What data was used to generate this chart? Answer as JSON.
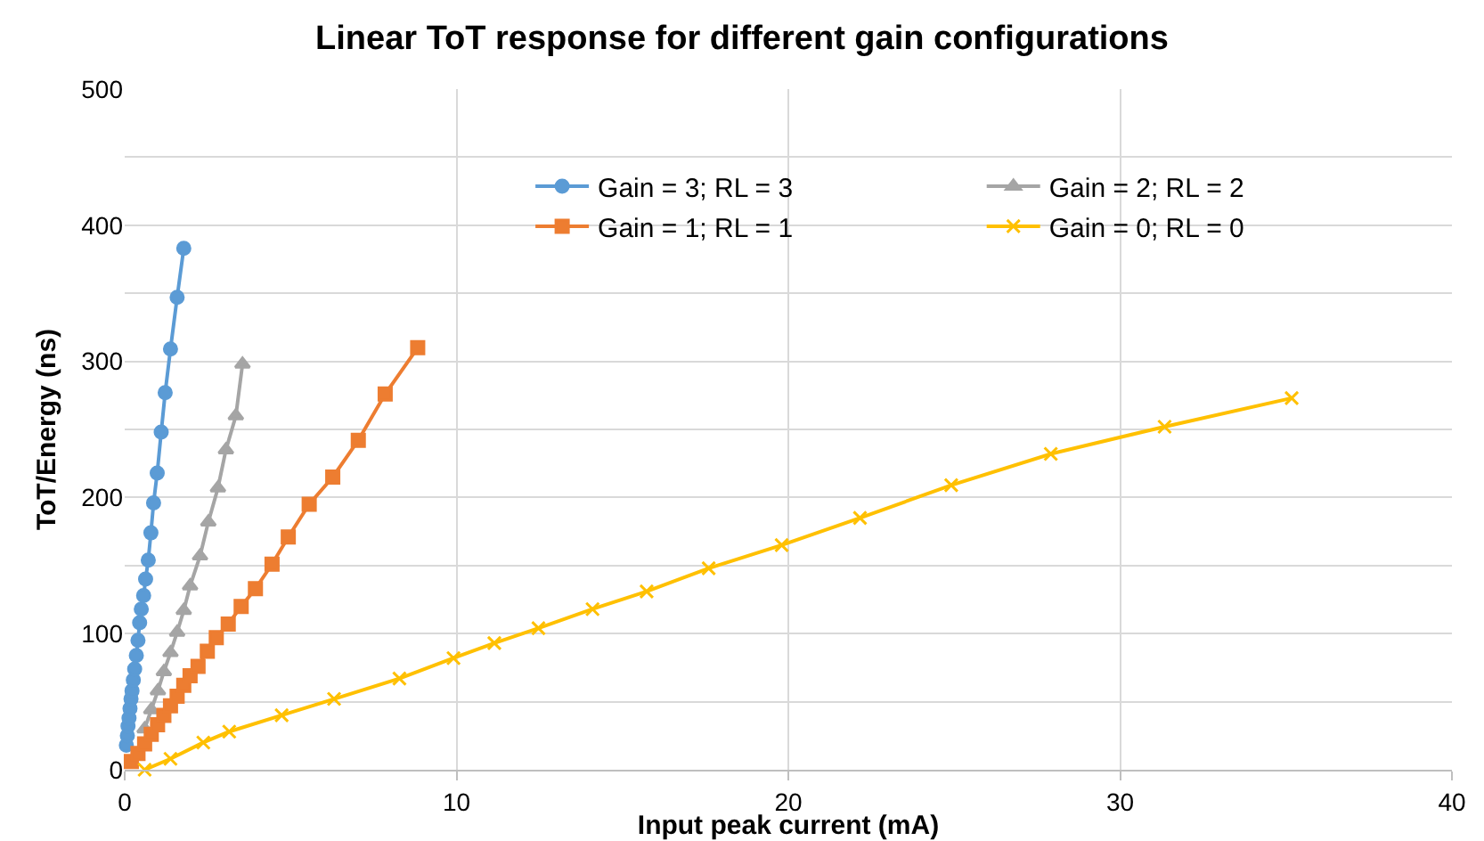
{
  "chart_data": {
    "type": "line",
    "title": "Linear ToT response for different gain configurations",
    "xlabel": "Input peak current (mA)",
    "ylabel": "ToT/Energy (ns)",
    "xlim": [
      0,
      40
    ],
    "xticks": [
      0,
      10,
      20,
      30,
      40
    ],
    "ylim": [
      0,
      500
    ],
    "yticks": [
      0,
      {
        "value": 50,
        "label": null
      },
      100,
      {
        "value": 150,
        "label": null
      },
      200,
      {
        "value": 250,
        "label": null
      },
      300,
      {
        "value": 350,
        "label": null
      },
      400,
      {
        "value": 450,
        "label": null
      },
      500
    ],
    "grid": true,
    "legend": "top right",
    "line_style": "solid",
    "series": [
      {
        "name": "Gain = 3; RL = 3",
        "color": "#5b9bd5",
        "marker": "circle",
        "x": [
          0.05,
          0.08,
          0.1,
          0.13,
          0.16,
          0.19,
          0.22,
          0.26,
          0.3,
          0.35,
          0.4,
          0.45,
          0.5,
          0.57,
          0.63,
          0.71,
          0.79,
          0.87,
          0.98,
          1.1,
          1.22,
          1.38,
          1.58,
          1.78
        ],
        "values": [
          18,
          25,
          32,
          38,
          45,
          52,
          58,
          66,
          74,
          84,
          95,
          108,
          118,
          128,
          140,
          154,
          174,
          196,
          218,
          248,
          277,
          309,
          347,
          383
        ]
      },
      {
        "name": "Gain = 2; RL = 2",
        "color": "#a5a5a5",
        "marker": "triangle",
        "x": [
          0.6,
          0.8,
          1.0,
          1.18,
          1.38,
          1.58,
          1.78,
          1.97,
          2.27,
          2.52,
          2.81,
          3.05,
          3.35,
          3.55
        ],
        "values": [
          30,
          44,
          58,
          72,
          86,
          101,
          117,
          135,
          157,
          182,
          207,
          235,
          260,
          298
        ]
      },
      {
        "name": "Gain = 1; RL = 1",
        "color": "#ed7d31",
        "marker": "square",
        "x": [
          0.2,
          0.4,
          0.6,
          0.8,
          0.99,
          1.18,
          1.38,
          1.58,
          1.78,
          1.97,
          2.21,
          2.49,
          2.76,
          3.12,
          3.51,
          3.94,
          4.44,
          4.93,
          5.56,
          6.27,
          7.04,
          7.85,
          8.83
        ],
        "values": [
          6,
          12,
          19,
          26,
          33,
          40,
          47,
          54,
          62,
          69,
          76,
          87,
          97,
          107,
          120,
          133,
          151,
          171,
          195,
          215,
          242,
          276,
          310
        ]
      },
      {
        "name": "Gain = 0; RL = 0",
        "color": "#ffc000",
        "marker": "cross",
        "x": [
          0.6,
          1.38,
          2.37,
          3.15,
          4.73,
          6.31,
          8.28,
          9.91,
          11.14,
          12.47,
          14.1,
          15.73,
          17.6,
          19.8,
          22.16,
          24.91,
          27.91,
          31.34,
          35.17
        ],
        "values": [
          0,
          8,
          20,
          28,
          40,
          52,
          67,
          82,
          93,
          104,
          118,
          131,
          148,
          165,
          185,
          209,
          232,
          252,
          273
        ]
      }
    ]
  }
}
